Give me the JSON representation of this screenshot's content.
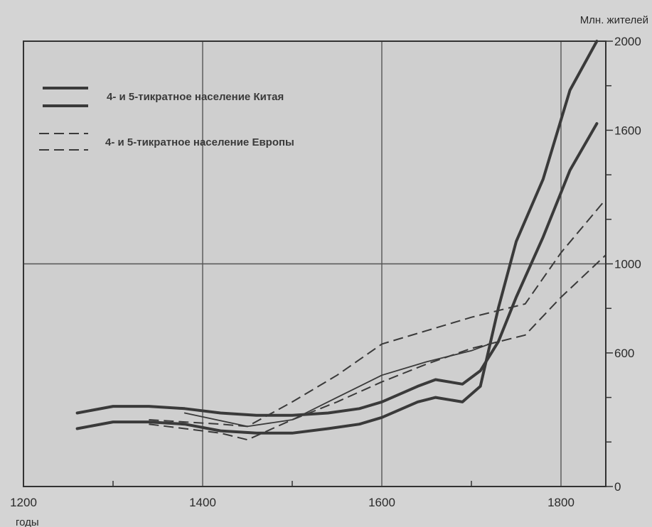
{
  "chart_data": {
    "type": "line",
    "title": "",
    "xlabel": "годы",
    "ylabel": "Млн. жителей",
    "xlim": [
      1200,
      1850
    ],
    "ylim": [
      0,
      2000
    ],
    "x_ticks": [
      1200,
      1400,
      1600,
      1800
    ],
    "y_ticks": [
      0,
      600,
      1000,
      1600,
      2000
    ],
    "y_tick_labels": [
      "0",
      "600",
      "1000",
      "1600",
      "2000"
    ],
    "grid": true,
    "legend_position": "top-left",
    "legend": [
      {
        "label": "4- и 5-тикратное население Китая",
        "style": "solid"
      },
      {
        "label": "4- и 5-тикратное население Европы",
        "style": "dashed"
      }
    ],
    "series": [
      {
        "group": "china",
        "style": "solid",
        "width": 4,
        "x": [
          1260,
          1300,
          1340,
          1380,
          1420,
          1460,
          1500,
          1540,
          1575,
          1600,
          1640,
          1660,
          1690,
          1710,
          1730,
          1750,
          1780,
          1810,
          1840
        ],
        "y": [
          260,
          290,
          290,
          280,
          250,
          240,
          240,
          260,
          280,
          310,
          380,
          400,
          380,
          450,
          800,
          1100,
          1380,
          1780,
          2000
        ]
      },
      {
        "group": "china",
        "style": "solid",
        "width": 4,
        "x": [
          1260,
          1300,
          1340,
          1380,
          1420,
          1460,
          1500,
          1540,
          1575,
          1600,
          1640,
          1660,
          1690,
          1710,
          1730,
          1750,
          1780,
          1810,
          1840
        ],
        "y": [
          330,
          360,
          360,
          350,
          330,
          320,
          320,
          330,
          350,
          380,
          450,
          480,
          460,
          520,
          650,
          850,
          1120,
          1420,
          1630
        ]
      },
      {
        "group": "europe",
        "style": "dashed",
        "width": 2,
        "x": [
          1340,
          1380,
          1420,
          1450,
          1500,
          1550,
          1600,
          1650,
          1700,
          1760,
          1800,
          1850
        ],
        "y": [
          300,
          290,
          280,
          270,
          380,
          500,
          640,
          700,
          760,
          820,
          1050,
          1290
        ]
      },
      {
        "group": "europe",
        "style": "dashed",
        "width": 2,
        "x": [
          1340,
          1380,
          1420,
          1450,
          1500,
          1550,
          1600,
          1650,
          1700,
          1760,
          1800,
          1850
        ],
        "y": [
          280,
          260,
          240,
          210,
          300,
          380,
          470,
          550,
          620,
          680,
          850,
          1040
        ]
      },
      {
        "group": "thin",
        "style": "solid",
        "width": 1.8,
        "x": [
          1380,
          1450,
          1500,
          1550,
          1600,
          1650,
          1700,
          1720
        ],
        "y": [
          330,
          270,
          300,
          400,
          500,
          560,
          610,
          640
        ]
      }
    ]
  }
}
